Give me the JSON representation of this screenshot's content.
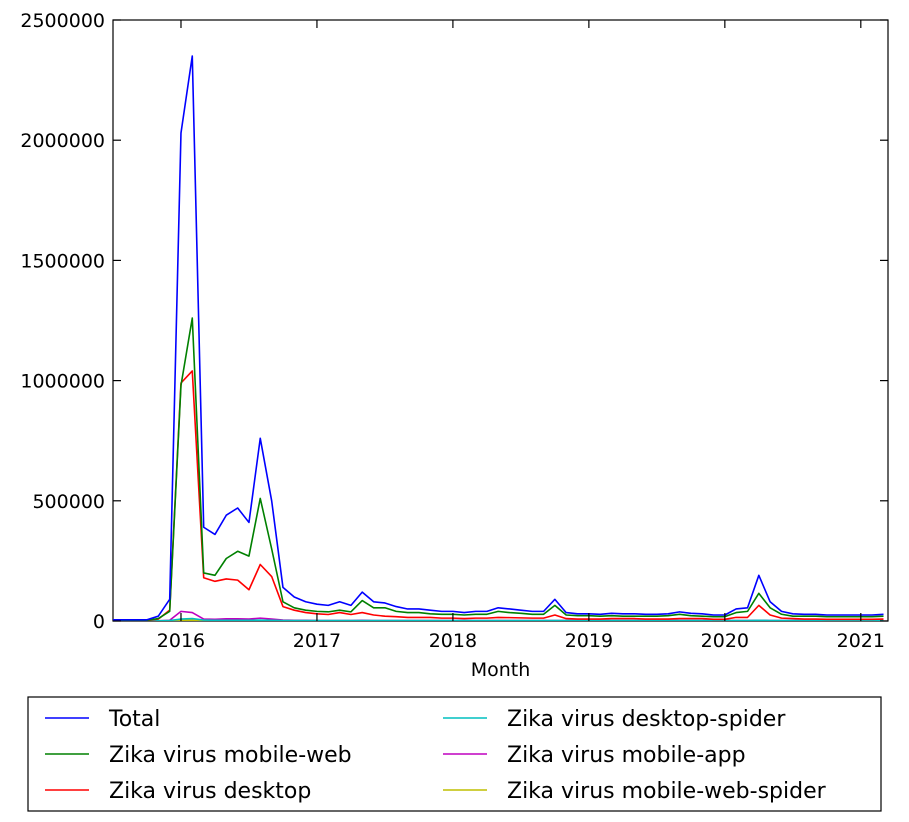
{
  "chart_data": {
    "type": "line",
    "title": "",
    "xlabel": "Month",
    "ylabel": "",
    "xlim": [
      2015.5,
      2021.2
    ],
    "ylim": [
      0,
      2500000
    ],
    "xticks": [
      2016,
      2017,
      2018,
      2019,
      2020,
      2021
    ],
    "xtick_labels": [
      "2016",
      "2017",
      "2018",
      "2019",
      "2020",
      "2021"
    ],
    "yticks": [
      0,
      500000,
      1000000,
      1500000,
      2000000,
      2500000
    ],
    "ytick_labels": [
      "0",
      "500000",
      "1000000",
      "1500000",
      "2000000",
      "2500000"
    ],
    "grid": false,
    "legend": {
      "placement": "below",
      "columns": 2
    },
    "x": [
      2015.5,
      2015.583,
      2015.667,
      2015.75,
      2015.833,
      2015.917,
      2016.0,
      2016.083,
      2016.167,
      2016.25,
      2016.333,
      2016.417,
      2016.5,
      2016.583,
      2016.667,
      2016.75,
      2016.833,
      2016.917,
      2017.0,
      2017.083,
      2017.167,
      2017.25,
      2017.333,
      2017.417,
      2017.5,
      2017.583,
      2017.667,
      2017.75,
      2017.833,
      2017.917,
      2018.0,
      2018.083,
      2018.167,
      2018.25,
      2018.333,
      2018.417,
      2018.5,
      2018.583,
      2018.667,
      2018.75,
      2018.833,
      2018.917,
      2019.0,
      2019.083,
      2019.167,
      2019.25,
      2019.333,
      2019.417,
      2019.5,
      2019.583,
      2019.667,
      2019.75,
      2019.833,
      2019.917,
      2020.0,
      2020.083,
      2020.167,
      2020.25,
      2020.333,
      2020.417,
      2020.5,
      2020.583,
      2020.667,
      2020.75,
      2020.833,
      2020.917,
      2021.0,
      2021.083,
      2021.167
    ],
    "series": [
      {
        "name": "Total",
        "color": "#0000ff",
        "values": [
          5000,
          5000,
          5000,
          5000,
          20000,
          90000,
          2030000,
          2350000,
          390000,
          360000,
          440000,
          470000,
          410000,
          760000,
          500000,
          140000,
          100000,
          80000,
          70000,
          65000,
          80000,
          65000,
          120000,
          80000,
          75000,
          60000,
          50000,
          50000,
          45000,
          40000,
          40000,
          35000,
          40000,
          40000,
          55000,
          50000,
          45000,
          40000,
          40000,
          90000,
          35000,
          30000,
          30000,
          28000,
          32000,
          30000,
          30000,
          28000,
          28000,
          30000,
          38000,
          32000,
          30000,
          25000,
          25000,
          50000,
          55000,
          190000,
          80000,
          40000,
          30000,
          28000,
          28000,
          25000,
          25000,
          25000,
          25000,
          25000,
          28000
        ]
      },
      {
        "name": "Zika virus mobile-web",
        "color": "#008000",
        "values": [
          3000,
          3000,
          3000,
          3000,
          10000,
          40000,
          980000,
          1260000,
          200000,
          190000,
          260000,
          290000,
          270000,
          510000,
          300000,
          80000,
          55000,
          45000,
          40000,
          38000,
          45000,
          38000,
          85000,
          55000,
          55000,
          40000,
          35000,
          35000,
          30000,
          28000,
          28000,
          25000,
          28000,
          28000,
          40000,
          35000,
          32000,
          28000,
          28000,
          65000,
          25000,
          22000,
          22000,
          20000,
          22000,
          20000,
          20000,
          20000,
          20000,
          22000,
          28000,
          22000,
          20000,
          18000,
          18000,
          35000,
          40000,
          115000,
          55000,
          28000,
          20000,
          20000,
          20000,
          18000,
          18000,
          18000,
          18000,
          18000,
          20000
        ]
      },
      {
        "name": "Zika virus desktop",
        "color": "#ff0000",
        "values": [
          2000,
          2000,
          2000,
          2000,
          8000,
          45000,
          990000,
          1040000,
          180000,
          165000,
          175000,
          170000,
          130000,
          235000,
          185000,
          60000,
          45000,
          35000,
          30000,
          27000,
          35000,
          27000,
          35000,
          25000,
          20000,
          18000,
          15000,
          15000,
          15000,
          12000,
          12000,
          10000,
          12000,
          12000,
          15000,
          14000,
          13000,
          12000,
          12000,
          25000,
          10000,
          8000,
          8000,
          8000,
          10000,
          10000,
          10000,
          8000,
          8000,
          8000,
          10000,
          10000,
          10000,
          7000,
          7000,
          15000,
          15000,
          65000,
          25000,
          12000,
          10000,
          8000,
          8000,
          7000,
          7000,
          7000,
          7000,
          7000,
          8000
        ]
      },
      {
        "name": "Zika virus desktop-spider",
        "color": "#00bfbf",
        "values": [
          500,
          500,
          500,
          500,
          1000,
          2000,
          8000,
          10000,
          4000,
          3000,
          3000,
          3000,
          3000,
          4000,
          3000,
          2000,
          2000,
          2000,
          2000,
          2000,
          2000,
          2000,
          2000,
          2000,
          2000,
          2000,
          2000,
          2000,
          2000,
          2000,
          2000,
          2000,
          2000,
          2000,
          2000,
          2000,
          2000,
          2000,
          2000,
          2000,
          2000,
          2000,
          2000,
          2000,
          2000,
          2000,
          2000,
          2000,
          2000,
          2000,
          2000,
          2000,
          2000,
          2000,
          2000,
          2000,
          2000,
          3000,
          2000,
          2000,
          2000,
          2000,
          2000,
          2000,
          2000,
          2000,
          2000,
          2000,
          2000
        ]
      },
      {
        "name": "Zika virus mobile-app",
        "color": "#bf00bf",
        "values": [
          500,
          500,
          500,
          500,
          1000,
          3000,
          40000,
          35000,
          8000,
          7000,
          9000,
          9000,
          8000,
          12000,
          8000,
          4000,
          3000,
          3000,
          2000,
          2000,
          2000,
          2000,
          3000,
          2000,
          2000,
          2000,
          2000,
          2000,
          2000,
          2000,
          2000,
          2000,
          2000,
          2000,
          2000,
          2000,
          2000,
          2000,
          2000,
          2000,
          2000,
          2000,
          2000,
          2000,
          2000,
          2000,
          2000,
          2000,
          2000,
          2000,
          2000,
          2000,
          2000,
          2000,
          2000,
          2000,
          2000,
          3000,
          2000,
          2000,
          2000,
          2000,
          2000,
          2000,
          2000,
          2000,
          2000,
          2000,
          2000
        ]
      },
      {
        "name": "Zika virus mobile-web-spider",
        "color": "#bfbf00",
        "values": [
          300,
          300,
          300,
          300,
          500,
          1000,
          3000,
          3000,
          1500,
          1200,
          1200,
          1200,
          1200,
          1500,
          1200,
          1000,
          1000,
          1000,
          1000,
          1000,
          1000,
          1000,
          1000,
          1000,
          1000,
          1000,
          1000,
          1000,
          1000,
          1000,
          1000,
          1000,
          1000,
          1000,
          1000,
          1000,
          1000,
          1000,
          1000,
          1000,
          1000,
          1000,
          1000,
          1000,
          1000,
          1000,
          1000,
          1000,
          1000,
          1000,
          1000,
          1000,
          1000,
          1000,
          1000,
          1000,
          1000,
          1500,
          1000,
          1000,
          1000,
          1000,
          1000,
          1000,
          1000,
          1000,
          1000,
          1000,
          1000
        ]
      }
    ]
  }
}
